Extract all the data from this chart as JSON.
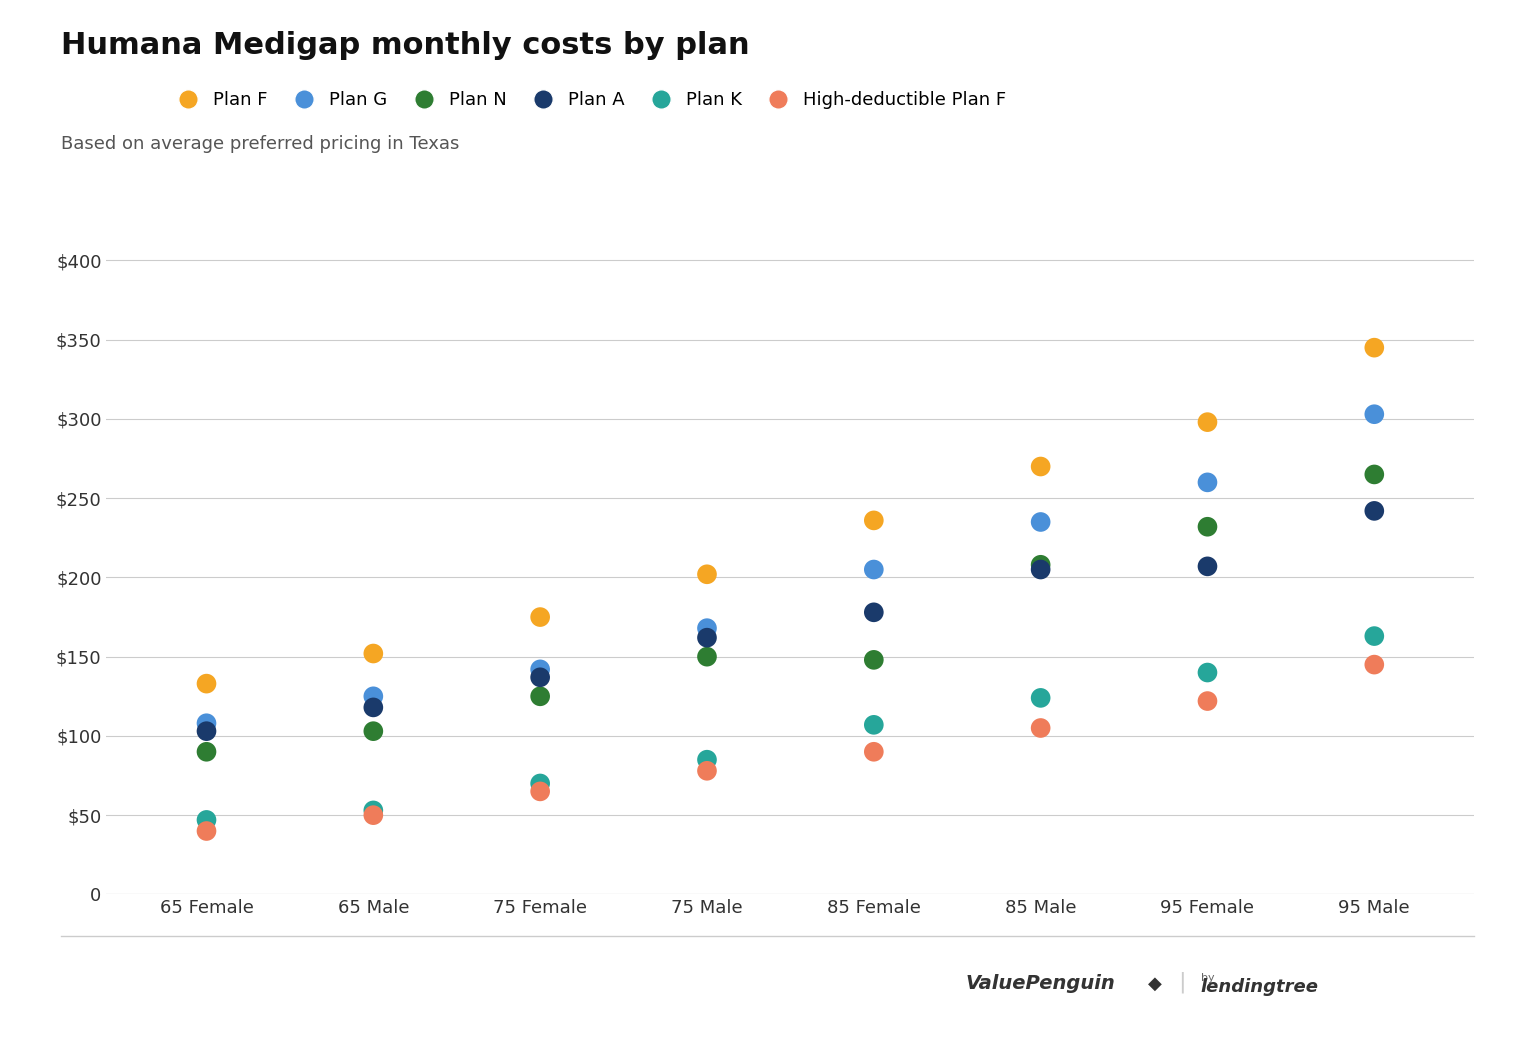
{
  "title": "Humana Medigap monthly costs by plan",
  "subtitle": "Based on average preferred pricing in Texas",
  "categories": [
    "65 Female",
    "65 Male",
    "75 Female",
    "75 Male",
    "85 Female",
    "85 Male",
    "95 Female",
    "95 Male"
  ],
  "plans": [
    "Plan F",
    "Plan G",
    "Plan N",
    "Plan A",
    "Plan K",
    "High-deductible Plan F"
  ],
  "colors": {
    "Plan F": "#F5A623",
    "Plan G": "#4A90D9",
    "Plan N": "#2E7D32",
    "Plan A": "#1A3A6B",
    "Plan K": "#26A69A",
    "High-deductible Plan F": "#EF7C5A"
  },
  "data": {
    "Plan F": [
      133,
      152,
      175,
      202,
      236,
      270,
      298,
      345
    ],
    "Plan G": [
      108,
      125,
      142,
      168,
      205,
      235,
      260,
      303
    ],
    "Plan N": [
      90,
      103,
      125,
      150,
      148,
      208,
      232,
      265
    ],
    "Plan A": [
      103,
      118,
      137,
      162,
      178,
      205,
      207,
      242
    ],
    "Plan K": [
      47,
      53,
      70,
      85,
      107,
      124,
      140,
      163
    ],
    "High-deductible Plan F": [
      40,
      50,
      65,
      78,
      90,
      105,
      122,
      145
    ]
  },
  "ylim": [
    0,
    420
  ],
  "yticks": [
    0,
    50,
    100,
    150,
    200,
    250,
    300,
    350,
    400
  ],
  "background_color": "#ffffff",
  "grid_color": "#cccccc",
  "title_fontsize": 22,
  "subtitle_fontsize": 13,
  "tick_fontsize": 13,
  "legend_fontsize": 13,
  "marker_size": 200
}
